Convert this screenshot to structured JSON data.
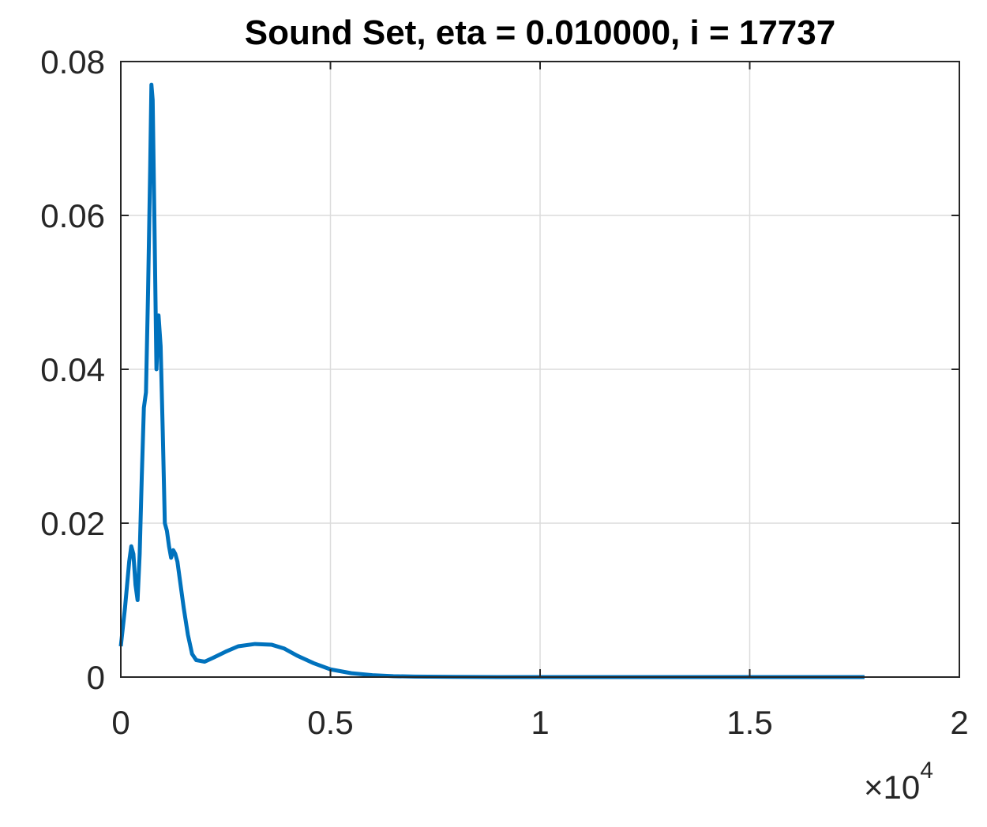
{
  "chart_data": {
    "type": "line",
    "title": "Sound Set, eta = 0.010000, i = 17737",
    "xlabel": "",
    "ylabel": "",
    "xlim": [
      0,
      20000
    ],
    "ylim": [
      0,
      0.08
    ],
    "grid": true,
    "x_exponent_label": "×10",
    "x_exponent_power": "4",
    "x_ticks": [
      {
        "value": 0,
        "label": "0"
      },
      {
        "value": 5000,
        "label": "0.5"
      },
      {
        "value": 10000,
        "label": "1"
      },
      {
        "value": 15000,
        "label": "1.5"
      },
      {
        "value": 20000,
        "label": "2"
      }
    ],
    "y_ticks": [
      {
        "value": 0,
        "label": "0"
      },
      {
        "value": 0.02,
        "label": "0.02"
      },
      {
        "value": 0.04,
        "label": "0.04"
      },
      {
        "value": 0.06,
        "label": "0.06"
      },
      {
        "value": 0.08,
        "label": "0.08"
      }
    ],
    "series": [
      {
        "color": "#0072BD",
        "x": [
          0,
          100,
          200,
          250,
          300,
          350,
          400,
          450,
          500,
          550,
          600,
          650,
          700,
          730,
          760,
          800,
          850,
          900,
          950,
          1000,
          1050,
          1100,
          1150,
          1200,
          1250,
          1300,
          1350,
          1400,
          1500,
          1600,
          1700,
          1800,
          2000,
          2200,
          2500,
          2800,
          3200,
          3600,
          3900,
          4200,
          4600,
          5000,
          5500,
          6000,
          6500,
          7000,
          8000,
          9000,
          10000,
          12000,
          14000,
          16000,
          17737
        ],
        "y": [
          0.004,
          0.009,
          0.015,
          0.017,
          0.016,
          0.012,
          0.01,
          0.016,
          0.026,
          0.035,
          0.037,
          0.05,
          0.066,
          0.077,
          0.075,
          0.06,
          0.04,
          0.047,
          0.043,
          0.032,
          0.02,
          0.019,
          0.017,
          0.0155,
          0.0165,
          0.016,
          0.015,
          0.013,
          0.009,
          0.0055,
          0.003,
          0.0022,
          0.002,
          0.0025,
          0.0033,
          0.004,
          0.0043,
          0.0042,
          0.0037,
          0.0028,
          0.0018,
          0.001,
          0.0005,
          0.00025,
          0.00012,
          6e-05,
          2e-05,
          5e-06,
          2e-06,
          0,
          0,
          0,
          0
        ]
      }
    ]
  }
}
